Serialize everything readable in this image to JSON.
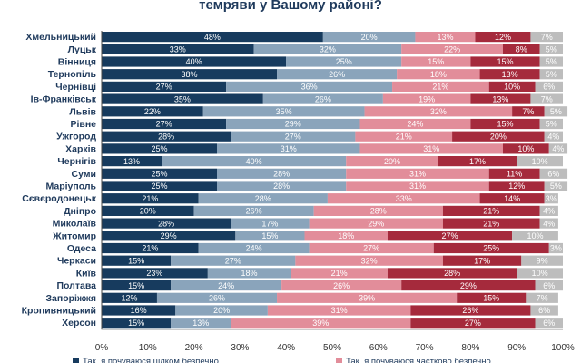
{
  "chart_data": {
    "type": "bar",
    "orientation": "horizontal",
    "stacked": true,
    "title": "темряви у Вашому районі?",
    "xlim": [
      0,
      100
    ],
    "x_ticks": [
      "0%",
      "10%",
      "20%",
      "30%",
      "40%",
      "50%",
      "60%",
      "70%",
      "80%",
      "90%",
      "100%"
    ],
    "categories": [
      "Хмельницький",
      "Луцьк",
      "Вінниця",
      "Тернопіль",
      "Чернівці",
      "Ів-Франківськ",
      "Львів",
      "Рівне",
      "Ужгород",
      "Харків",
      "Чернігів",
      "Суми",
      "Маріуполь",
      "Сєвєродонецьк",
      "Дніпро",
      "Миколаїв",
      "Житомир",
      "Одеса",
      "Черкаси",
      "Київ",
      "Полтава",
      "Запоріжжя",
      "Кропивницький",
      "Херсон"
    ],
    "series": [
      {
        "name": "Так, я почуваюся цілком безпечно",
        "color": "#173b5e",
        "values": [
          48,
          33,
          40,
          38,
          27,
          35,
          22,
          27,
          28,
          25,
          13,
          25,
          25,
          21,
          20,
          28,
          29,
          21,
          15,
          23,
          15,
          12,
          16,
          15
        ]
      },
      {
        "name": "",
        "color": "#8aa4bb",
        "values": [
          20,
          32,
          25,
          26,
          36,
          26,
          35,
          29,
          27,
          31,
          40,
          28,
          28,
          28,
          26,
          17,
          15,
          24,
          27,
          18,
          24,
          26,
          20,
          13
        ]
      },
      {
        "name": "Так, я почуваюся частково безпечно",
        "color": "#e28d9a",
        "values": [
          13,
          22,
          15,
          18,
          21,
          19,
          32,
          24,
          21,
          31,
          20,
          31,
          31,
          33,
          28,
          29,
          18,
          27,
          32,
          21,
          26,
          39,
          31,
          39
        ]
      },
      {
        "name": "",
        "color": "#a52a3c",
        "values": [
          12,
          8,
          15,
          13,
          10,
          13,
          7,
          15,
          20,
          10,
          17,
          11,
          12,
          14,
          21,
          21,
          27,
          25,
          17,
          28,
          29,
          15,
          26,
          27
        ]
      },
      {
        "name": "",
        "color": "#bdbdbd",
        "values": [
          7,
          5,
          5,
          5,
          6,
          7,
          5,
          5,
          4,
          4,
          10,
          6,
          5,
          3,
          4,
          4,
          10,
          3,
          9,
          10,
          6,
          7,
          6,
          6
        ]
      }
    ],
    "legend": {
      "position": "bottom",
      "entries": [
        "Так, я почуваюся цілком безпечно",
        "Так, я почуваюся частково безпечно"
      ]
    },
    "grid": false
  }
}
